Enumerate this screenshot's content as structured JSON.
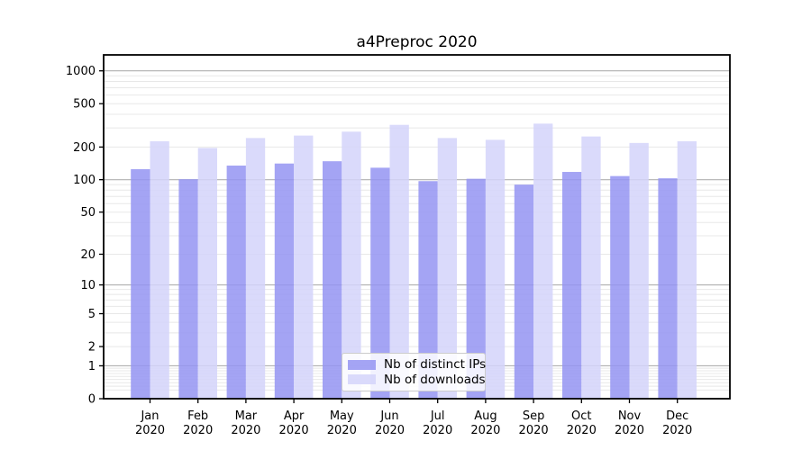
{
  "figure": {
    "background": "#ffffff"
  },
  "chart_data": {
    "type": "bar",
    "title": "a4Preproc 2020",
    "categories": [
      "Jan 2020",
      "Feb 2020",
      "Mar 2020",
      "Apr 2020",
      "May 2020",
      "Jun 2020",
      "Jul 2020",
      "Aug 2020",
      "Sep 2020",
      "Oct 2020",
      "Nov 2020",
      "Dec 2020"
    ],
    "series": [
      {
        "name": "Nb of distinct IPs",
        "color": "#9494f2",
        "values": [
          125,
          101,
          135,
          141,
          148,
          129,
          97,
          102,
          90,
          118,
          108,
          103
        ]
      },
      {
        "name": "Nb of downloads",
        "color": "#d3d3fa",
        "values": [
          226,
          196,
          242,
          255,
          277,
          320,
          242,
          233,
          328,
          250,
          218,
          226
        ]
      }
    ],
    "xlabel": "",
    "ylabel": "",
    "yscale": "log1p",
    "yticks": [
      0,
      1,
      2,
      5,
      10,
      20,
      50,
      100,
      200,
      500,
      1000
    ],
    "ylim": [
      0,
      1400
    ],
    "grid": true,
    "legend_position": "lower center",
    "colors": {
      "major_grid": "#b0b0b0",
      "minor_grid": "#e8e8e8",
      "axis": "#000000",
      "tick_text": "#000000"
    },
    "bar_opacity": 0.85
  }
}
